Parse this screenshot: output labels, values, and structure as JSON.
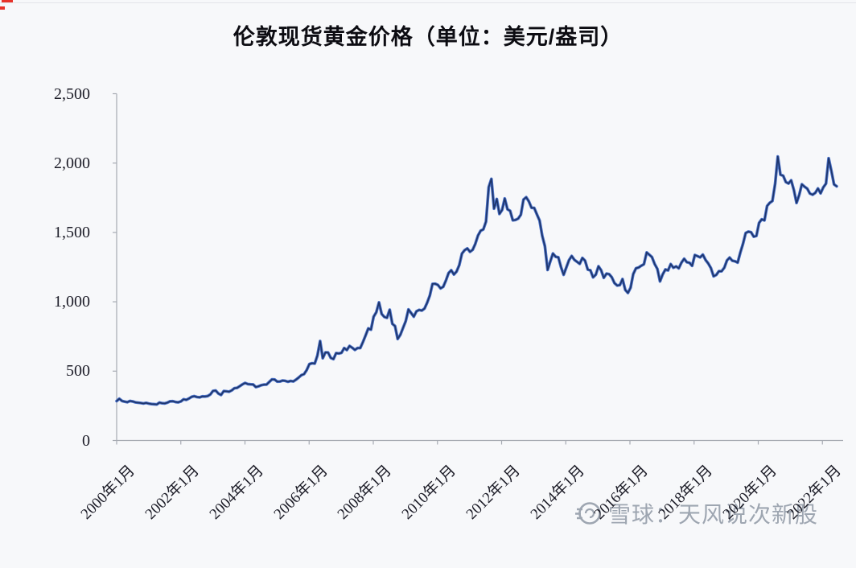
{
  "page": {
    "background": "#f7f8fa",
    "artifact": "small-red-scan-mark-top-left"
  },
  "chart": {
    "title": "伦敦现货黄金价格（单位：美元/盎司）"
  },
  "watermark": {
    "logo": "xueqiu-snowball-icon",
    "text": "雪球：天风说次新股",
    "color": "#9aa2ae"
  },
  "chart_data": {
    "type": "line",
    "title": "伦敦现货黄金价格（单位：美元/盎司）",
    "ylabel": "",
    "xlabel": "",
    "unit": "美元/盎司",
    "ylim": [
      0,
      2500
    ],
    "grid": false,
    "legend": false,
    "line_color": "#2b4b9e",
    "y_tick_labels": [
      "0",
      "500",
      "1,000",
      "1,500",
      "2,000",
      "2,500"
    ],
    "x_tick_labels": [
      "2000年1月",
      "2002年1月",
      "2004年1月",
      "2006年1月",
      "2008年1月",
      "2010年1月",
      "2012年1月",
      "2014年1月",
      "2016年1月",
      "2018年1月",
      "2020年1月",
      "2022年1月"
    ],
    "series": [
      {
        "name": "伦敦现货黄金价格",
        "start": "2000年1月",
        "end": "2022年6月",
        "frequency": "monthly",
        "values": [
          284,
          300,
          286,
          280,
          275,
          286,
          281,
          274,
          274,
          270,
          266,
          272,
          266,
          262,
          263,
          260,
          272,
          270,
          267,
          272,
          284,
          283,
          276,
          276,
          282,
          296,
          294,
          302,
          314,
          321,
          313,
          310,
          319,
          317,
          319,
          333,
          357,
          359,
          340,
          328,
          355,
          356,
          351,
          360,
          379,
          379,
          390,
          407,
          414,
          405,
          407,
          403,
          384,
          392,
          398,
          401,
          405,
          421,
          439,
          442,
          424,
          424,
          434,
          429,
          422,
          431,
          425,
          437,
          456,
          470,
          477,
          510,
          550,
          555,
          557,
          611,
          715,
          596,
          634,
          632,
          598,
          586,
          628,
          630,
          631,
          665,
          655,
          680,
          667,
          656,
          665,
          665,
          713,
          755,
          806,
          803,
          890,
          922,
          1000,
          910,
          889,
          889,
          940,
          839,
          829,
          730,
          761,
          816,
          858,
          943,
          924,
          890,
          929,
          946,
          934,
          949,
          997,
          1043,
          1127,
          1135,
          1118,
          1095,
          1113,
          1149,
          1205,
          1233,
          1193,
          1216,
          1271,
          1343,
          1370,
          1391,
          1356,
          1373,
          1424,
          1474,
          1511,
          1529,
          1573,
          1825,
          1895,
          1666,
          1739,
          1641,
          1656,
          1743,
          1674,
          1650,
          1586,
          1597,
          1594,
          1626,
          1745,
          1747,
          1722,
          1685,
          1671,
          1628,
          1593,
          1470,
          1400,
          1235,
          1286,
          1347,
          1330,
          1316,
          1250,
          1200,
          1244,
          1300,
          1336,
          1298,
          1288,
          1279,
          1311,
          1296,
          1237,
          1222,
          1176,
          1201,
          1251,
          1227,
          1178,
          1198,
          1199,
          1181,
          1130,
          1117,
          1125,
          1159,
          1086,
          1068,
          1097,
          1200,
          1246,
          1242,
          1260,
          1276,
          1350,
          1340,
          1327,
          1266,
          1238,
          1152,
          1192,
          1234,
          1231,
          1266,
          1246,
          1260,
          1236,
          1283,
          1315,
          1280,
          1282,
          1264,
          1331,
          1330,
          1325,
          1334,
          1303,
          1281,
          1238,
          1185,
          1198,
          1215,
          1221,
          1250,
          1292,
          1320,
          1301,
          1286,
          1284,
          1359,
          1413,
          1498,
          1511,
          1495,
          1471,
          1480,
          1561,
          1597,
          1592,
          1683,
          1716,
          1732,
          1843,
          2050,
          1922,
          1900,
          1866,
          1858,
          1867,
          1808,
          1718,
          1762,
          1850,
          1835,
          1807,
          1784,
          1777,
          1777,
          1820,
          1787,
          1817,
          1856,
          2040,
          1937,
          1850,
          1837
        ]
      }
    ]
  }
}
